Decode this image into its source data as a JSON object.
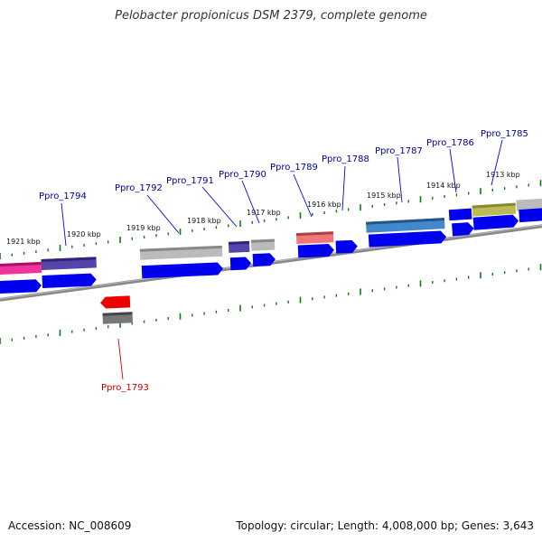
{
  "title": "Pelobacter propionicus DSM 2379, complete genome",
  "accession": "Accession: NC_008609",
  "summary": "Topology: circular; Length: 4,008,000 bp; Genes: 3,643",
  "colors": {
    "backbone": "#888888",
    "tick": "#117711",
    "forward_arrow": "#0000ee",
    "reverse_arrow": "#ee0000",
    "label_forward": "#000099",
    "label_reverse": "#cc0000"
  },
  "kbp_labels": [
    "1921 kbp",
    "1920 kbp",
    "1919 kbp",
    "1918 kbp",
    "1917 kbp",
    "1916 kbp",
    "1915 kbp",
    "1914 kbp",
    "1913 kbp"
  ],
  "genes_forward": [
    "Ppro_1794",
    "Ppro_1792",
    "Ppro_1791",
    "Ppro_1790",
    "Ppro_1789",
    "Ppro_1788",
    "Ppro_1787",
    "Ppro_1786",
    "Ppro_1785"
  ],
  "genes_reverse": [
    "Ppro_1793"
  ]
}
